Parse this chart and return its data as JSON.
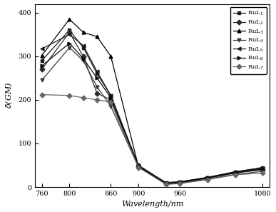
{
  "series": [
    {
      "label": "RuL$_1$",
      "marker": "s",
      "color": "#1a1a1a",
      "x": [
        760,
        800,
        820,
        840,
        860,
        900,
        940,
        960,
        1000,
        1040,
        1080
      ],
      "y": [
        290,
        360,
        320,
        260,
        210,
        50,
        10,
        12,
        22,
        35,
        45
      ]
    },
    {
      "label": "RuL$_2$",
      "marker": "D",
      "color": "#2a2a2a",
      "x": [
        760,
        800,
        820,
        840,
        860,
        900,
        940,
        960,
        1000,
        1040,
        1080
      ],
      "y": [
        270,
        355,
        300,
        215,
        200,
        48,
        8,
        10,
        20,
        32,
        40
      ]
    },
    {
      "label": "RuL$_3$",
      "marker": "^",
      "color": "#000000",
      "x": [
        760,
        800,
        820,
        840,
        860,
        900,
        940,
        960,
        1000,
        1040,
        1080
      ],
      "y": [
        302,
        385,
        355,
        345,
        300,
        47,
        9,
        11,
        22,
        34,
        41
      ]
    },
    {
      "label": "RuL$_4$",
      "marker": "v",
      "color": "#3a3a3a",
      "x": [
        760,
        800,
        820,
        840,
        860,
        900,
        940,
        960,
        1000,
        1040,
        1080
      ],
      "y": [
        245,
        320,
        290,
        230,
        185,
        46,
        7,
        9,
        18,
        29,
        36
      ]
    },
    {
      "label": "RuL$_5$",
      "marker": "<",
      "color": "#1c1c1c",
      "x": [
        760,
        800,
        820,
        840,
        860,
        900,
        940,
        960,
        1000,
        1040,
        1080
      ],
      "y": [
        317,
        350,
        325,
        265,
        210,
        47,
        10,
        12,
        22,
        35,
        43
      ]
    },
    {
      "label": "RuL$_6$",
      "marker": ">",
      "color": "#0a0a0a",
      "x": [
        760,
        800,
        820,
        840,
        860,
        900,
        940,
        960,
        1000,
        1040,
        1080
      ],
      "y": [
        278,
        330,
        295,
        250,
        205,
        49,
        8,
        11,
        21,
        33,
        42
      ]
    },
    {
      "label": "RuL$_7$",
      "marker": "D",
      "color": "#666666",
      "x": [
        760,
        800,
        820,
        840,
        860,
        900,
        940,
        960,
        1000,
        1040,
        1080
      ],
      "y": [
        212,
        210,
        205,
        200,
        195,
        45,
        6,
        8,
        17,
        28,
        32
      ]
    }
  ],
  "xlabel": "Wavelength/nm",
  "ylabel": "$\\delta$(GM)",
  "xlim": [
    750,
    1090
  ],
  "ylim": [
    0,
    420
  ],
  "xticks": [
    760,
    800,
    860,
    900,
    960,
    1080
  ],
  "yticks": [
    0,
    100,
    200,
    300,
    400
  ],
  "background_color": "#ffffff"
}
